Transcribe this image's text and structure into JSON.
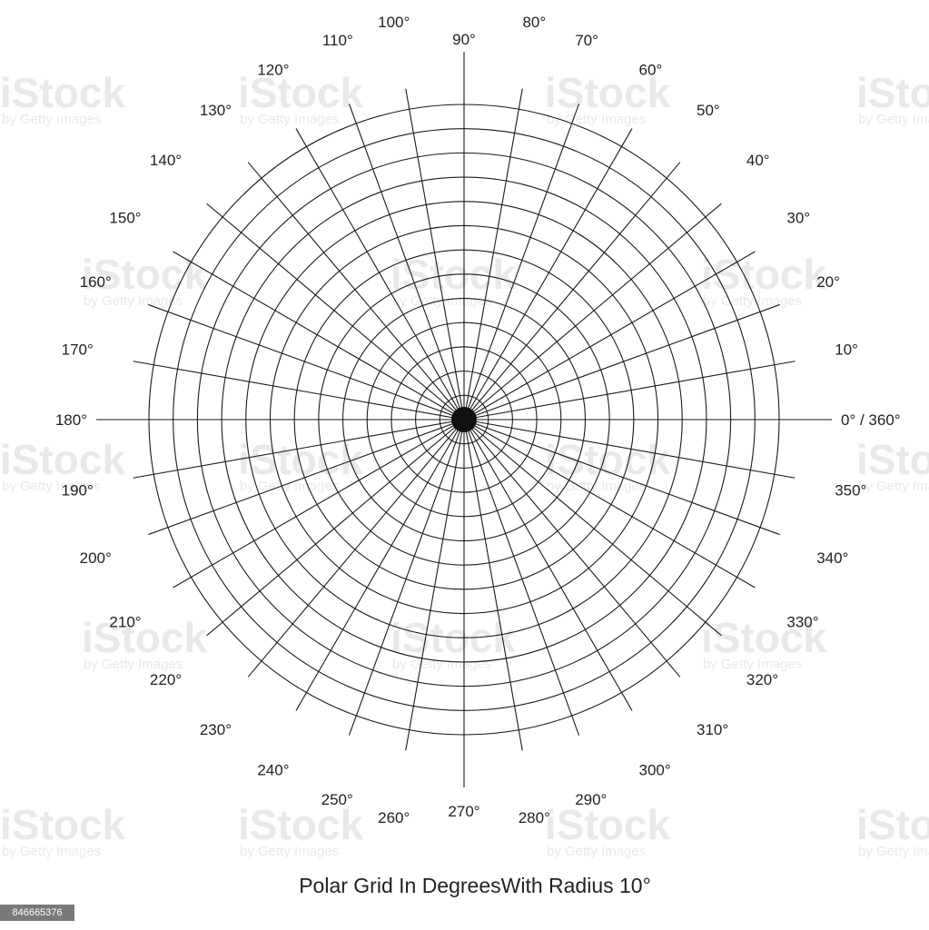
{
  "caption": "Polar Grid In DegreesWith Radius 10°",
  "grid": {
    "ring_count": 13,
    "spoke_step_degrees": 10,
    "line_color": "#1a1a1a"
  },
  "angle_labels": [
    {
      "angle": 0,
      "text": "0° / 360°"
    },
    {
      "angle": 10,
      "text": "10°"
    },
    {
      "angle": 20,
      "text": "20°"
    },
    {
      "angle": 30,
      "text": "30°"
    },
    {
      "angle": 40,
      "text": "40°"
    },
    {
      "angle": 50,
      "text": "50°"
    },
    {
      "angle": 60,
      "text": "60°"
    },
    {
      "angle": 70,
      "text": "70°"
    },
    {
      "angle": 80,
      "text": "80°"
    },
    {
      "angle": 90,
      "text": "90°"
    },
    {
      "angle": 100,
      "text": "100°"
    },
    {
      "angle": 110,
      "text": "110°"
    },
    {
      "angle": 120,
      "text": "120°"
    },
    {
      "angle": 130,
      "text": "130°"
    },
    {
      "angle": 140,
      "text": "140°"
    },
    {
      "angle": 150,
      "text": "150°"
    },
    {
      "angle": 160,
      "text": "160°"
    },
    {
      "angle": 170,
      "text": "170°"
    },
    {
      "angle": 180,
      "text": "180°"
    },
    {
      "angle": 190,
      "text": "190°"
    },
    {
      "angle": 200,
      "text": "200°"
    },
    {
      "angle": 210,
      "text": "210°"
    },
    {
      "angle": 220,
      "text": "220°"
    },
    {
      "angle": 230,
      "text": "230°"
    },
    {
      "angle": 240,
      "text": "240°"
    },
    {
      "angle": 250,
      "text": "250°"
    },
    {
      "angle": 260,
      "text": "260°"
    },
    {
      "angle": 270,
      "text": "270°"
    },
    {
      "angle": 280,
      "text": "280°"
    },
    {
      "angle": 290,
      "text": "290°"
    },
    {
      "angle": 300,
      "text": "300°"
    },
    {
      "angle": 310,
      "text": "310°"
    },
    {
      "angle": 320,
      "text": "320°"
    },
    {
      "angle": 330,
      "text": "330°"
    },
    {
      "angle": 340,
      "text": "340°"
    },
    {
      "angle": 350,
      "text": "350°"
    }
  ],
  "watermark": {
    "brand": "iStock",
    "credit": "by Getty Images",
    "stock_id": "846665376"
  }
}
